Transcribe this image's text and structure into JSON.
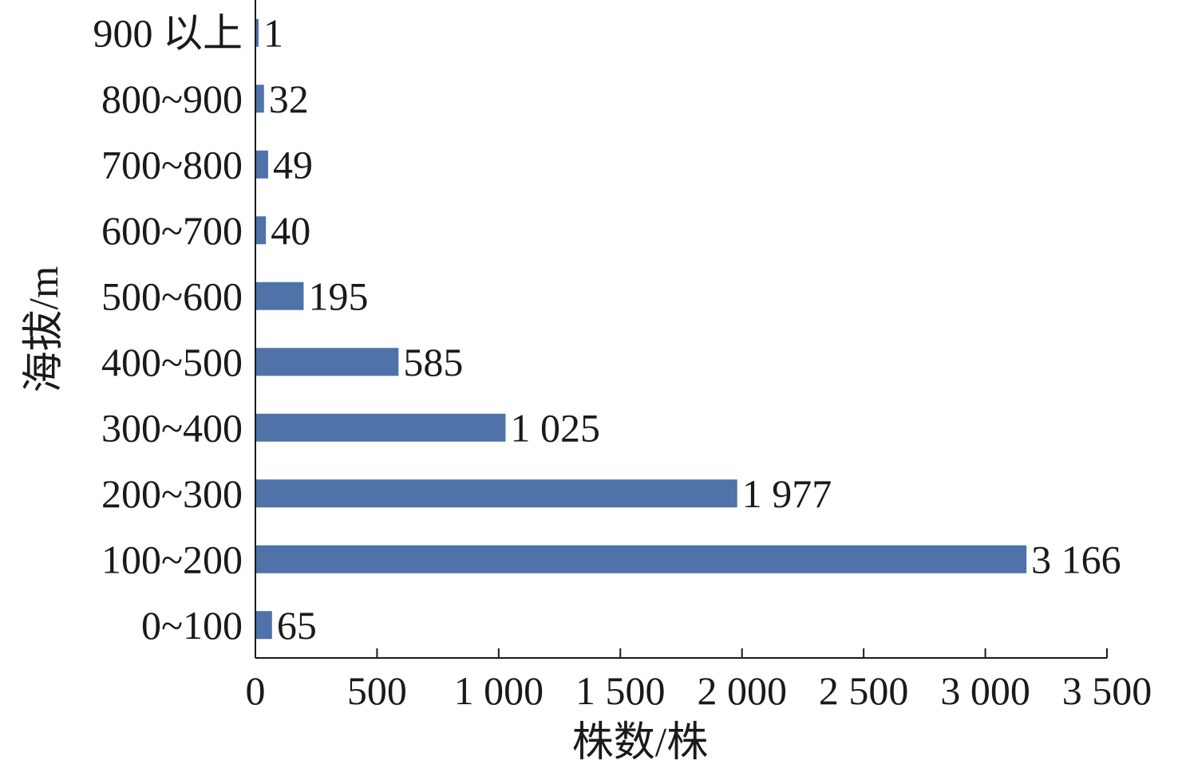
{
  "chart_data": {
    "type": "bar",
    "orientation": "horizontal",
    "categories": [
      "0~100",
      "100~200",
      "200~300",
      "300~400",
      "400~500",
      "500~600",
      "600~700",
      "700~800",
      "800~900",
      "900 以上"
    ],
    "values": [
      65,
      3166,
      1977,
      1025,
      585,
      195,
      40,
      49,
      32,
      1
    ],
    "value_labels": [
      "65",
      "3 166",
      "1 977",
      "1 025",
      "585",
      "195",
      "40",
      "49",
      "32",
      "1"
    ],
    "xlabel": "株数/株",
    "ylabel": "海拔/m",
    "xlim": [
      0,
      3500
    ],
    "xticks": [
      0,
      500,
      1000,
      1500,
      2000,
      2500,
      3000,
      3500
    ],
    "xtick_labels": [
      "0",
      "500",
      "1 000",
      "1 500",
      "2 000",
      "2 500",
      "3 000",
      "3 500"
    ],
    "bar_color": "#4f72a9",
    "grid": false,
    "legend": "none"
  }
}
